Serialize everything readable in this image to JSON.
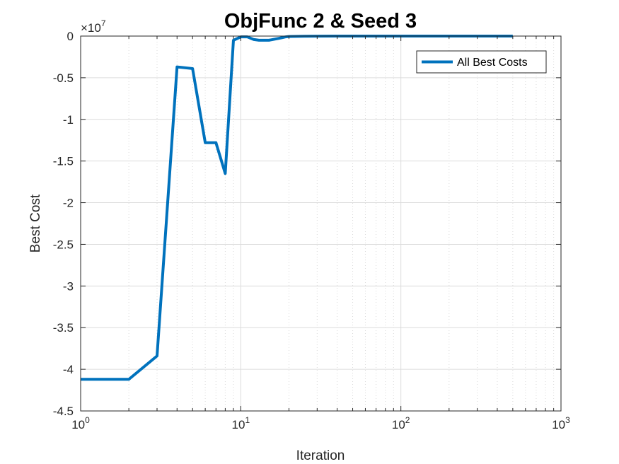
{
  "chart_data": {
    "type": "line",
    "title": "ObjFunc 2 & Seed 3",
    "xlabel": "Iteration",
    "ylabel": "Best Cost",
    "xscale": "log",
    "xlim": [
      1,
      1000
    ],
    "ylim": [
      -45000000,
      0
    ],
    "y_exponent_label": "×10",
    "y_exponent_power": "7",
    "x_ticks": [
      {
        "value": 1,
        "base": "10",
        "power": "0"
      },
      {
        "value": 10,
        "base": "10",
        "power": "1"
      },
      {
        "value": 100,
        "base": "10",
        "power": "2"
      },
      {
        "value": 1000,
        "base": "10",
        "power": "3"
      }
    ],
    "y_ticks": [
      {
        "value": 0,
        "label": "0"
      },
      {
        "value": -5000000,
        "label": "-0.5"
      },
      {
        "value": -10000000,
        "label": "-1"
      },
      {
        "value": -15000000,
        "label": "-1.5"
      },
      {
        "value": -20000000,
        "label": "-2"
      },
      {
        "value": -25000000,
        "label": "-2.5"
      },
      {
        "value": -30000000,
        "label": "-3"
      },
      {
        "value": -35000000,
        "label": "-3.5"
      },
      {
        "value": -40000000,
        "label": "-4"
      },
      {
        "value": -45000000,
        "label": "-4.5"
      }
    ],
    "grid": true,
    "legend_position": "top-right",
    "series": [
      {
        "name": "All Best Costs",
        "color": "#0072BD",
        "x": [
          1,
          2,
          3,
          4,
          5,
          6,
          7,
          8,
          9,
          10,
          11,
          12,
          13,
          14,
          15,
          16,
          17,
          18,
          19,
          20,
          25,
          30,
          40,
          60,
          100,
          200,
          500
        ],
        "y": [
          -41200000,
          -41200000,
          -38400000,
          -3700000,
          -3900000,
          -12800000,
          -12800000,
          -16500000,
          -500000,
          -100000,
          -100000,
          -400000,
          -500000,
          -500000,
          -500000,
          -400000,
          -300000,
          -200000,
          -100000,
          -50000,
          -20000,
          -10000,
          0,
          0,
          0,
          0,
          0
        ]
      }
    ]
  }
}
